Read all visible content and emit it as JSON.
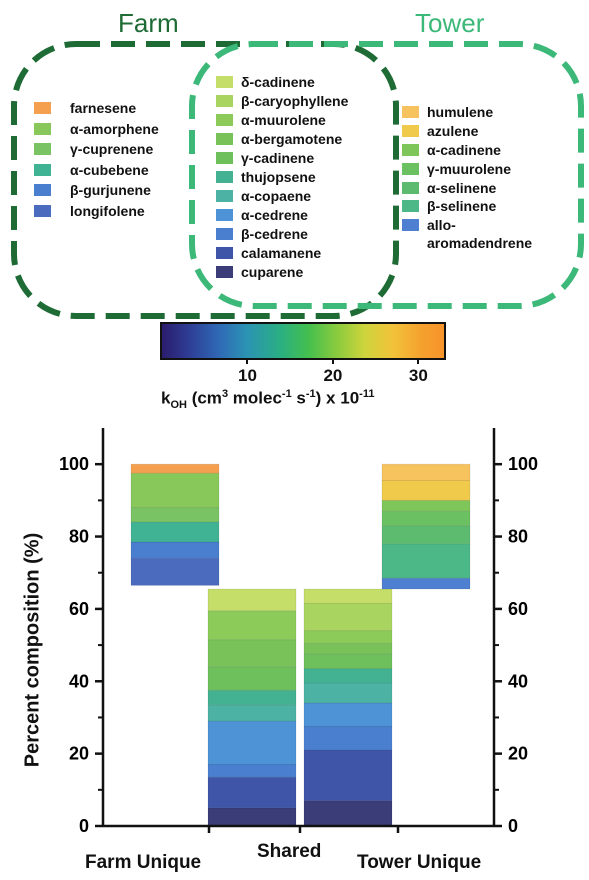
{
  "venn": {
    "farm_title": "Farm",
    "tower_title": "Tower",
    "farm_color": "#1e6b35",
    "tower_color": "#3cb878",
    "farm_only": [
      {
        "name": "farnesene",
        "color": "#f4a04e"
      },
      {
        "name": "α-amorphene",
        "color": "#88c75a"
      },
      {
        "name": "γ-cuprenene",
        "color": "#79c364"
      },
      {
        "name": "α-cubebene",
        "color": "#40b394"
      },
      {
        "name": "β-gurjunene",
        "color": "#4a7fcf"
      },
      {
        "name": "longifolene",
        "color": "#4a6bbe"
      }
    ],
    "shared": [
      {
        "name": "δ-cadinene",
        "color": "#c5de6a"
      },
      {
        "name": "β-caryophyllene",
        "color": "#a9d460"
      },
      {
        "name": "α-muurolene",
        "color": "#8ccb59"
      },
      {
        "name": "α-bergamotene",
        "color": "#79c25a"
      },
      {
        "name": "γ-cadinene",
        "color": "#6ec05d"
      },
      {
        "name": "thujopsene",
        "color": "#42b292"
      },
      {
        "name": "α-copaene",
        "color": "#4cb3a4"
      },
      {
        "name": "α-cedrene",
        "color": "#4d93d6"
      },
      {
        "name": "β-cedrene",
        "color": "#4a7fd0"
      },
      {
        "name": "calamanene",
        "color": "#3f55a8"
      },
      {
        "name": "cuparene",
        "color": "#3a3d78"
      }
    ],
    "tower_only": [
      {
        "name": "humulene",
        "color": "#f7c35e"
      },
      {
        "name": "azulene",
        "color": "#f0ca4a"
      },
      {
        "name": "α-cadinene",
        "color": "#7ec55a"
      },
      {
        "name": "γ-muurolene",
        "color": "#6bc062"
      },
      {
        "name": "α-selinene",
        "color": "#5cbb6e"
      },
      {
        "name": "β-selinene",
        "color": "#4cb887"
      },
      {
        "name": "allo-\naromadendrene",
        "color": "#4f7fd0"
      }
    ]
  },
  "colorbar": {
    "ticks": [
      "10",
      "20",
      "30"
    ],
    "title_base": "k",
    "title_sub": "OH",
    "title_mid1": " (cm",
    "title_sup1": "3",
    "title_mid2": " molec",
    "title_sup2": "-1",
    "title_mid3": " s",
    "title_sup3": "-1",
    "title_mid4": ") x 10",
    "title_sup4": "-11"
  },
  "chart_data": {
    "type": "bar",
    "stacked": true,
    "ylabel": "Percent composition (%)",
    "ylim": [
      0,
      110
    ],
    "yticks": [
      "0",
      "20",
      "40",
      "60",
      "80",
      "100"
    ],
    "categories": [
      "Farm Unique",
      "Shared",
      "Shared",
      "Tower Unique"
    ],
    "category_labels": [
      "Farm Unique",
      "Shared",
      "Tower Unique"
    ],
    "bars": [
      {
        "category": "Farm Unique",
        "base": 66.5,
        "segments": [
          {
            "value": 7.5,
            "color": "#4a6bbe"
          },
          {
            "value": 4.5,
            "color": "#4a7fcf"
          },
          {
            "value": 5.5,
            "color": "#40b394"
          },
          {
            "value": 4.0,
            "color": "#79c364"
          },
          {
            "value": 9.5,
            "color": "#88c75a"
          },
          {
            "value": 2.5,
            "color": "#f4a04e"
          }
        ]
      },
      {
        "category": "Shared (Farm)",
        "base": 0,
        "segments": [
          {
            "value": 5.0,
            "color": "#3a3d78"
          },
          {
            "value": 8.5,
            "color": "#3f55a8"
          },
          {
            "value": 3.5,
            "color": "#4a7fd0"
          },
          {
            "value": 12.0,
            "color": "#4d93d6"
          },
          {
            "value": 4.5,
            "color": "#4cb3a4"
          },
          {
            "value": 4.0,
            "color": "#42b292"
          },
          {
            "value": 6.5,
            "color": "#6ec05d"
          },
          {
            "value": 7.5,
            "color": "#79c25a"
          },
          {
            "value": 8.0,
            "color": "#8ccb59"
          },
          {
            "value": 6.0,
            "color": "#c5de6a"
          }
        ]
      },
      {
        "category": "Shared (Tower)",
        "base": 0,
        "segments": [
          {
            "value": 7.0,
            "color": "#3a3d78"
          },
          {
            "value": 14.0,
            "color": "#3f55a8"
          },
          {
            "value": 6.5,
            "color": "#4a7fd0"
          },
          {
            "value": 6.5,
            "color": "#4d93d6"
          },
          {
            "value": 5.5,
            "color": "#4cb3a4"
          },
          {
            "value": 4.0,
            "color": "#42b292"
          },
          {
            "value": 4.0,
            "color": "#6ec05d"
          },
          {
            "value": 3.0,
            "color": "#79c25a"
          },
          {
            "value": 3.5,
            "color": "#8ccb59"
          },
          {
            "value": 7.5,
            "color": "#a9d460"
          },
          {
            "value": 4.0,
            "color": "#c5de6a"
          }
        ]
      },
      {
        "category": "Tower Unique",
        "base": 65.5,
        "segments": [
          {
            "value": 3.0,
            "color": "#4f7fd0"
          },
          {
            "value": 9.5,
            "color": "#4cb887"
          },
          {
            "value": 5.0,
            "color": "#5cbb6e"
          },
          {
            "value": 4.0,
            "color": "#6bc062"
          },
          {
            "value": 3.0,
            "color": "#7ec55a"
          },
          {
            "value": 5.5,
            "color": "#f0ca4a"
          },
          {
            "value": 4.5,
            "color": "#f7c35e"
          }
        ]
      }
    ]
  }
}
